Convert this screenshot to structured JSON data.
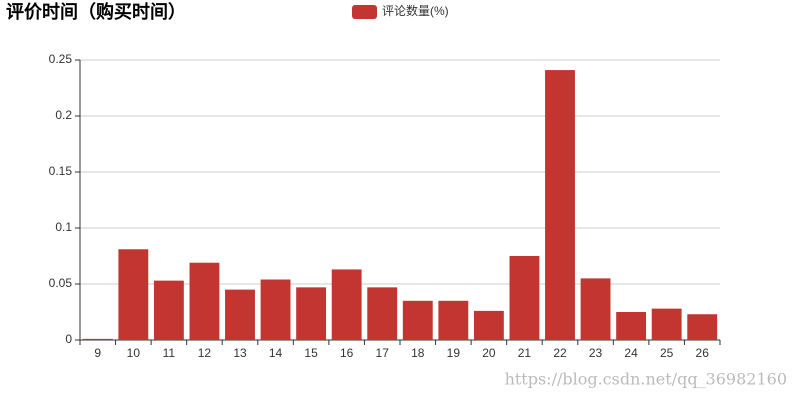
{
  "chart_data": {
    "type": "bar",
    "title": "评价时间（购买时间）",
    "series": [
      {
        "name": "评论数量(%)",
        "color": "#c23531",
        "values": [
          0.001,
          0.081,
          0.053,
          0.069,
          0.045,
          0.054,
          0.047,
          0.063,
          0.047,
          0.035,
          0.035,
          0.026,
          0.075,
          0.241,
          0.055,
          0.025,
          0.028,
          0.023
        ]
      }
    ],
    "categories": [
      "9",
      "10",
      "11",
      "12",
      "13",
      "14",
      "15",
      "16",
      "17",
      "18",
      "19",
      "20",
      "21",
      "22",
      "23",
      "24",
      "25",
      "26"
    ],
    "ylim": [
      0,
      0.25
    ],
    "yticks": [
      0,
      0.05,
      0.1,
      0.15,
      0.2,
      0.25
    ],
    "grid": true,
    "legend": "top",
    "watermark": "https://blog.csdn.net/qq_36982160"
  }
}
